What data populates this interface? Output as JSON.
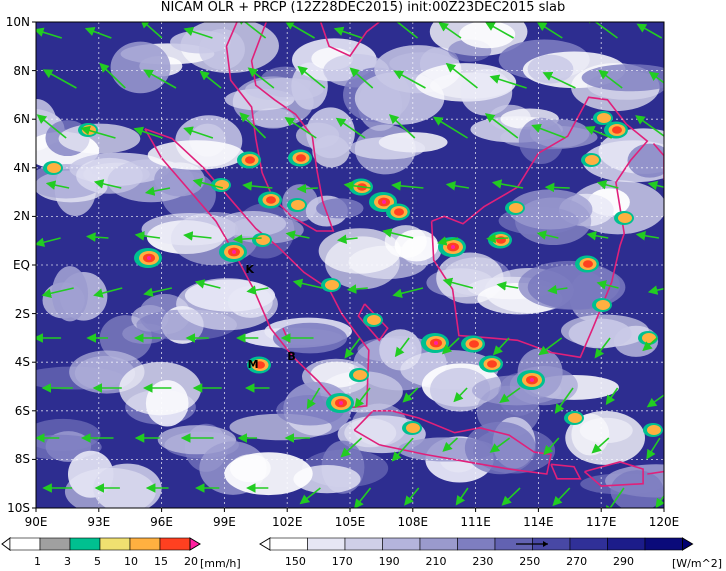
{
  "title": "NICAM OLR + PRCP (12Z28DEC2015) init:00Z23DEC2015 slab",
  "axes": {
    "y_labels": [
      "10N",
      "8N",
      "6N",
      "4N",
      "2N",
      "EQ",
      "2S",
      "4S",
      "6S",
      "8S",
      "10S"
    ],
    "x_labels": [
      "90E",
      "93E",
      "96E",
      "99E",
      "102E",
      "105E",
      "108E",
      "111E",
      "114E",
      "117E",
      "120E"
    ]
  },
  "markers": [
    {
      "label": "K",
      "lon": 100.2,
      "lat": -0.2
    },
    {
      "label": "M",
      "lon": 100.3,
      "lat": -4.1
    },
    {
      "label": "B",
      "lon": 102.2,
      "lat": -3.8
    }
  ],
  "precip_legend": {
    "ticks": [
      "1",
      "3",
      "5",
      "10",
      "15",
      "20"
    ],
    "unit": "[mm/h]",
    "colors": [
      "#a0a0a0",
      "#00c090",
      "#f0e070",
      "#ffb040",
      "#ff4020",
      "#ff20a0"
    ]
  },
  "olr_legend": {
    "ticks": [
      "150",
      "170",
      "190",
      "210",
      "230",
      "250",
      "270",
      "290"
    ],
    "unit": "[W/m^2]",
    "colors": [
      "#ffffff",
      "#e6e6f4",
      "#cfcfe8",
      "#b4b4dc",
      "#9a9acd",
      "#7e7ec0",
      "#6262b2",
      "#4848a5",
      "#303098",
      "#1c1c8a",
      "#0a0a7a"
    ]
  },
  "colors": {
    "coast": "#e0207a",
    "wind": "#22cc22",
    "olr_dark": "#2a2a8e",
    "olr_mid": "#7676be",
    "cloud": "#ffffff"
  }
}
